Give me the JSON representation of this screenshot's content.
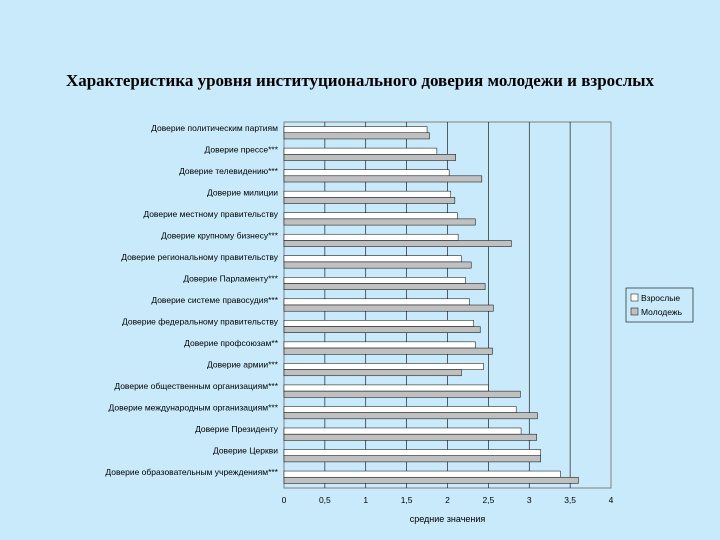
{
  "title": "Характеристика уровня институционального доверия молодежи и взрослых",
  "chart_data": {
    "type": "bar",
    "orientation": "horizontal",
    "categories": [
      "Доверие политическим партиям",
      "Доверие прессе***",
      "Доверие телевидению***",
      "Доверие милиции",
      "Доверие местному  правительству",
      "Доверие крупному бизнесу***",
      "Доверие региональному правительству",
      "Доверие Парламенту***",
      "Доверие системе правосудия***",
      "Доверие федеральному правительству",
      "Доверие профсоюзам**",
      "Доверие армии***",
      "Доверие общественным организациям***",
      "Доверие международным организациям***",
      "Доверие Президенту",
      "Доверие Церкви",
      "Доверие образовательным учреждениям***"
    ],
    "series": [
      {
        "name": "Взрослые",
        "color": "#ffffff",
        "values": [
          1.75,
          1.87,
          2.02,
          2.04,
          2.12,
          2.13,
          2.17,
          2.22,
          2.27,
          2.32,
          2.34,
          2.44,
          2.5,
          2.84,
          2.9,
          3.14,
          3.38
        ]
      },
      {
        "name": "Молодежь",
        "color": "#c0c0c0",
        "values": [
          1.78,
          2.1,
          2.42,
          2.09,
          2.34,
          2.78,
          2.29,
          2.46,
          2.56,
          2.4,
          2.55,
          2.17,
          2.89,
          3.1,
          3.09,
          3.14,
          3.6
        ]
      }
    ],
    "xlim": [
      0,
      4
    ],
    "xticks": [
      "0",
      "0,5",
      "1",
      "1,5",
      "2",
      "2,5",
      "3",
      "3,5",
      "4"
    ],
    "xlabel": "средние значения",
    "ylabel": "",
    "grid": "vertical",
    "legend_position": "right"
  }
}
